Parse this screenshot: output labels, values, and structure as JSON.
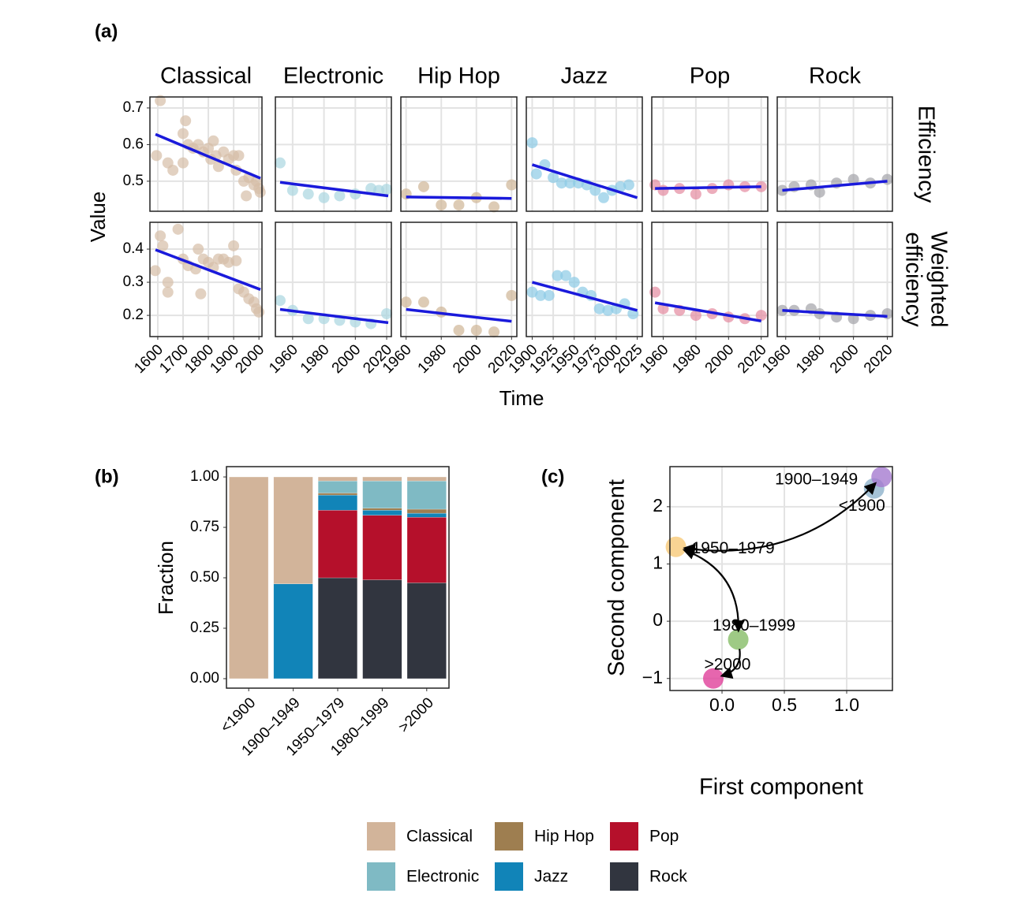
{
  "chart_data": [
    {
      "type": "facet-scatter",
      "panel_label": "(a)",
      "ylabel": "Value",
      "xlabel": "Time",
      "fit_color": "#1a1adb",
      "columns": [
        {
          "name": "Classical",
          "color": "#d6bea6",
          "xlim": [
            1569,
            2012
          ],
          "xticks": [
            1600,
            1700,
            1800,
            1900,
            2000
          ]
        },
        {
          "name": "Electronic",
          "color": "#a9d6e0",
          "xlim": [
            1949,
            2023
          ],
          "xticks": [
            1960,
            1980,
            2000,
            2020
          ]
        },
        {
          "name": "Hip Hop",
          "color": "#cfb596",
          "xlim": [
            1957,
            2023
          ],
          "xticks": [
            1960,
            1980,
            2000,
            2020
          ]
        },
        {
          "name": "Jazz",
          "color": "#8ccbe6",
          "xlim": [
            1893,
            2031
          ],
          "xticks": [
            1900,
            1925,
            1950,
            1975,
            2000,
            2025
          ]
        },
        {
          "name": "Pop",
          "color": "#e48aa0",
          "xlim": [
            1953,
            2024
          ],
          "xticks": [
            1960,
            1980,
            2000,
            2020
          ]
        },
        {
          "name": "Rock",
          "color": "#a3a3a8",
          "xlim": [
            1955,
            2023
          ],
          "xticks": [
            1960,
            1980,
            2000,
            2020
          ]
        }
      ],
      "rows": [
        {
          "label": [
            "Efficiency"
          ],
          "ylim": [
            0.418,
            0.73
          ],
          "yticks": [
            0.5,
            0.6,
            0.7
          ]
        },
        {
          "label": [
            "Weighted",
            "efficiency"
          ],
          "ylim": [
            0.136,
            0.481
          ],
          "yticks": [
            0.2,
            0.3,
            0.4
          ]
        }
      ],
      "facets": [
        [
          {
            "x": [
              1610,
              1595,
              1640,
              1660,
              1700,
              1710,
              1720,
              1700,
              1740,
              1760,
              1780,
              1800,
              1810,
              1820,
              1830,
              1840,
              1860,
              1880,
              1900,
              1910,
              1920,
              1940,
              1950,
              1960,
              1980,
              1990,
              2000,
              2005
            ],
            "values": [
              0.72,
              0.57,
              0.55,
              0.53,
              0.63,
              0.665,
              0.6,
              0.55,
              0.59,
              0.6,
              0.58,
              0.59,
              0.56,
              0.61,
              0.57,
              0.54,
              0.58,
              0.56,
              0.57,
              0.53,
              0.57,
              0.5,
              0.46,
              0.51,
              0.49,
              0.5,
              0.48,
              0.47
            ],
            "fit": {
              "x": [
                1591,
                2006
              ],
              "values": [
                0.628,
                0.508
              ]
            }
          },
          {
            "x": [
              1952,
              1960,
              1970,
              1980,
              1990,
              2000,
              2010,
              2015,
              2020
            ],
            "values": [
              0.55,
              0.475,
              0.465,
              0.455,
              0.46,
              0.465,
              0.48,
              0.475,
              0.478
            ],
            "fit": {
              "x": [
                1952,
                2021
              ],
              "values": [
                0.497,
                0.46
              ]
            }
          },
          {
            "x": [
              1960,
              1970,
              1980,
              1990,
              2000,
              2010,
              2020
            ],
            "values": [
              0.465,
              0.485,
              0.435,
              0.435,
              0.455,
              0.43,
              0.49
            ],
            "fit": {
              "x": [
                1960,
                2020
              ],
              "values": [
                0.457,
                0.453
              ]
            }
          },
          {
            "x": [
              1900,
              1905,
              1915,
              1925,
              1935,
              1945,
              1955,
              1965,
              1975,
              1985,
              1995,
              2005,
              2015
            ],
            "values": [
              0.605,
              0.52,
              0.545,
              0.51,
              0.495,
              0.495,
              0.495,
              0.49,
              0.475,
              0.455,
              0.475,
              0.485,
              0.49
            ],
            "fit": {
              "x": [
                1900,
                2025
              ],
              "values": [
                0.545,
                0.455
              ]
            }
          },
          {
            "x": [
              1955,
              1960,
              1970,
              1980,
              1990,
              2000,
              2010,
              2020
            ],
            "values": [
              0.49,
              0.475,
              0.48,
              0.465,
              0.48,
              0.49,
              0.485,
              0.485
            ],
            "fit": {
              "x": [
                1955,
                2020
              ],
              "values": [
                0.48,
                0.485
              ]
            }
          },
          {
            "x": [
              1958,
              1965,
              1975,
              1980,
              1990,
              2000,
              2010,
              2020
            ],
            "values": [
              0.475,
              0.485,
              0.49,
              0.47,
              0.495,
              0.505,
              0.495,
              0.505
            ],
            "fit": {
              "x": [
                1958,
                2020
              ],
              "values": [
                0.475,
                0.5
              ]
            }
          }
        ],
        [
          {
            "x": [
              1590,
              1610,
              1620,
              1640,
              1640,
              1680,
              1700,
              1720,
              1750,
              1760,
              1770,
              1780,
              1800,
              1820,
              1840,
              1860,
              1880,
              1900,
              1910,
              1920,
              1940,
              1960,
              1980,
              1990,
              2000
            ],
            "values": [
              0.335,
              0.44,
              0.41,
              0.3,
              0.27,
              0.46,
              0.37,
              0.35,
              0.34,
              0.4,
              0.265,
              0.37,
              0.36,
              0.345,
              0.37,
              0.37,
              0.36,
              0.41,
              0.365,
              0.28,
              0.27,
              0.25,
              0.24,
              0.22,
              0.21
            ],
            "fit": {
              "x": [
                1591,
                2006
              ],
              "values": [
                0.398,
                0.278
              ]
            }
          },
          {
            "x": [
              1952,
              1960,
              1970,
              1980,
              1990,
              2000,
              2010,
              2020
            ],
            "values": [
              0.245,
              0.215,
              0.19,
              0.19,
              0.185,
              0.18,
              0.175,
              0.205
            ],
            "fit": {
              "x": [
                1952,
                2021
              ],
              "values": [
                0.218,
                0.178
              ]
            }
          },
          {
            "x": [
              1960,
              1970,
              1980,
              1990,
              2000,
              2010,
              2020
            ],
            "values": [
              0.24,
              0.24,
              0.21,
              0.155,
              0.155,
              0.15,
              0.26
            ],
            "fit": {
              "x": [
                1960,
                2020
              ],
              "values": [
                0.218,
                0.182
              ]
            }
          },
          {
            "x": [
              1900,
              1910,
              1920,
              1930,
              1940,
              1950,
              1960,
              1970,
              1980,
              1990,
              2000,
              2010,
              2020
            ],
            "values": [
              0.27,
              0.26,
              0.26,
              0.32,
              0.32,
              0.3,
              0.27,
              0.26,
              0.22,
              0.215,
              0.22,
              0.235,
              0.205
            ],
            "fit": {
              "x": [
                1900,
                2025
              ],
              "values": [
                0.3,
                0.215
              ]
            }
          },
          {
            "x": [
              1955,
              1960,
              1970,
              1980,
              1990,
              2000,
              2010,
              2020
            ],
            "values": [
              0.27,
              0.22,
              0.215,
              0.2,
              0.205,
              0.195,
              0.19,
              0.2
            ],
            "fit": {
              "x": [
                1955,
                2020
              ],
              "values": [
                0.238,
                0.183
              ]
            }
          },
          {
            "x": [
              1958,
              1965,
              1975,
              1980,
              1990,
              2000,
              2010,
              2020
            ],
            "values": [
              0.215,
              0.215,
              0.22,
              0.205,
              0.195,
              0.19,
              0.2,
              0.205
            ],
            "fit": {
              "x": [
                1958,
                2020
              ],
              "values": [
                0.215,
                0.197
              ]
            }
          }
        ]
      ]
    },
    {
      "type": "bar",
      "stacked": true,
      "panel_label": "(b)",
      "ylabel": "Fraction",
      "legend": "bottom",
      "categories": [
        "<1900",
        "1900–1949",
        "1950–1979",
        "1980–1999",
        ">2000"
      ],
      "series": [
        {
          "name": "Classical",
          "color": "#d2b49a",
          "values": [
            1.0,
            0.53,
            0.02,
            0.02,
            0.02
          ]
        },
        {
          "name": "Electronic",
          "color": "#7fbac4",
          "values": [
            0,
            0,
            0.06,
            0.135,
            0.14
          ]
        },
        {
          "name": "Hip Hop",
          "color": "#9e7e50",
          "values": [
            0,
            0,
            0.01,
            0.01,
            0.02
          ]
        },
        {
          "name": "Jazz",
          "color": "#1184b8",
          "values": [
            0,
            0.47,
            0.075,
            0.025,
            0.02
          ]
        },
        {
          "name": "Pop",
          "color": "#b5102b",
          "values": [
            0,
            0,
            0.335,
            0.32,
            0.325
          ]
        },
        {
          "name": "Rock",
          "color": "#31353f",
          "values": [
            0,
            0,
            0.5,
            0.49,
            0.475
          ]
        }
      ],
      "ylim": [
        -0.047,
        1.051
      ],
      "yticks": [
        {
          "value": 0,
          "label": "0.00"
        },
        {
          "value": 0.25,
          "label": "0.25"
        },
        {
          "value": 0.5,
          "label": "0.50"
        },
        {
          "value": 0.75,
          "label": "0.75"
        },
        {
          "value": 1,
          "label": "1.00"
        }
      ]
    },
    {
      "type": "scatter",
      "panel_label": "(c)",
      "xlabel": "First component",
      "ylabel": "Second component",
      "grid": true,
      "labels": [
        "<1900",
        "1900–1949",
        "1950–1979",
        "1980–1999",
        ">2000"
      ],
      "x": [
        1.22,
        1.28,
        -0.37,
        0.13,
        -0.07
      ],
      "values": [
        2.32,
        2.52,
        1.3,
        -0.32,
        -1.0
      ],
      "colors": [
        "#8fb3cc",
        "#a57ad0",
        "#f7c978",
        "#86bd66",
        "#e0409a"
      ],
      "label_colors": [
        "#2f6e8e",
        "#3b1e66",
        "#e58a1a",
        "#3a7a18",
        "#b0105a"
      ],
      "xlim": [
        -0.418,
        1.367
      ],
      "ylim": [
        -1.21,
        2.7
      ],
      "xticks": [
        {
          "value": 0,
          "label": "0.0"
        },
        0.5,
        {
          "value": 1,
          "label": "1.0"
        }
      ],
      "yticks": [
        {
          "value": -1,
          "label": "−1"
        },
        0,
        1,
        2
      ]
    }
  ]
}
